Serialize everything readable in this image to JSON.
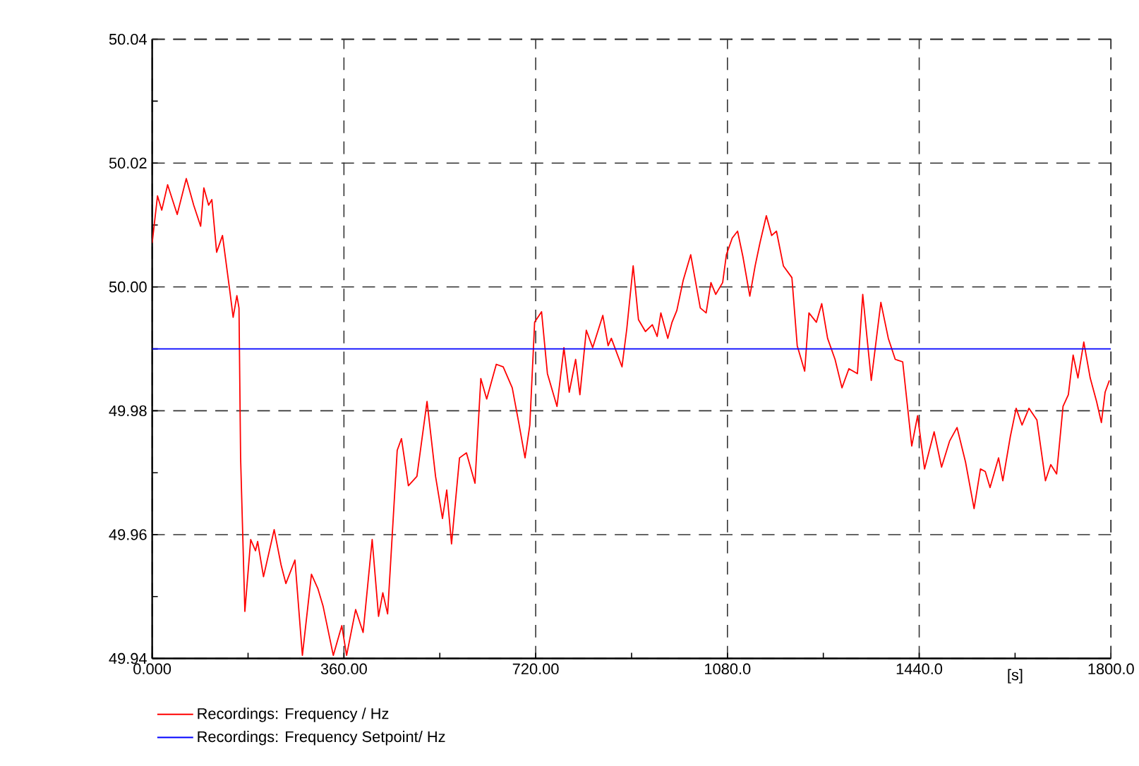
{
  "chart_data": {
    "type": "line",
    "xlabel": "[s]",
    "xlim": [
      0,
      1800
    ],
    "ylim": [
      49.94,
      50.04
    ],
    "xticks": [
      {
        "value": 0,
        "label": "0.000"
      },
      {
        "value": 360,
        "label": "360.00"
      },
      {
        "value": 720,
        "label": "720.00"
      },
      {
        "value": 1080,
        "label": "1080.0"
      },
      {
        "value": 1440,
        "label": "1440.0"
      },
      {
        "value": 1800,
        "label": "1800.0"
      }
    ],
    "yticks": [
      {
        "value": 49.94,
        "label": "49.94"
      },
      {
        "value": 49.96,
        "label": "49.96"
      },
      {
        "value": 49.98,
        "label": "49.98"
      },
      {
        "value": 50.0,
        "label": "50.00"
      },
      {
        "value": 50.02,
        "label": "50.02"
      },
      {
        "value": 50.04,
        "label": "50.04"
      }
    ],
    "grid": true,
    "legend": "bottom",
    "marker": "none",
    "line_style": "solid",
    "series": [
      {
        "name": "Recordings: Frequency / Hz",
        "color": "#ff0000",
        "x": [
          0,
          10,
          18,
          29,
          47,
          64,
          78,
          91,
          97,
          106,
          112,
          121,
          132,
          146,
          152,
          159,
          163,
          166,
          174,
          185,
          194,
          198,
          209,
          229,
          242,
          251,
          268,
          282,
          299,
          311,
          321,
          340,
          356,
          365,
          382,
          396,
          413,
          425,
          433,
          442,
          460,
          468,
          481,
          497,
          516,
          532,
          545,
          553,
          562,
          577,
          590,
          606,
          617,
          628,
          646,
          659,
          676,
          689,
          700,
          709,
          718,
          731,
          742,
          760,
          773,
          783,
          795,
          803,
          815,
          827,
          846,
          856,
          862,
          882,
          891,
          903,
          913,
          926,
          939,
          948,
          955,
          968,
          976,
          985,
          997,
          1011,
          1029,
          1040,
          1049,
          1058,
          1071,
          1078,
          1089,
          1099,
          1109,
          1122,
          1132,
          1141,
          1153,
          1163,
          1172,
          1185,
          1201,
          1211,
          1225,
          1233,
          1247,
          1257,
          1268,
          1282,
          1295,
          1308,
          1324,
          1334,
          1350,
          1368,
          1382,
          1395,
          1409,
          1426,
          1437,
          1450,
          1468,
          1482,
          1497,
          1511,
          1527,
          1543,
          1555,
          1564,
          1573,
          1589,
          1597,
          1611,
          1622,
          1633,
          1646,
          1661,
          1677,
          1687,
          1698,
          1710,
          1720,
          1729,
          1738,
          1749,
          1761,
          1773,
          1782,
          1789,
          1797
        ],
        "values": [
          50.0071,
          50.0147,
          50.0124,
          50.0165,
          50.0117,
          50.0175,
          50.0132,
          50.0098,
          50.016,
          50.0132,
          50.0141,
          50.0056,
          50.0083,
          49.9992,
          49.9951,
          49.9986,
          49.9966,
          49.9724,
          49.9476,
          49.9592,
          49.9574,
          49.9589,
          49.9532,
          49.9608,
          49.9551,
          49.9521,
          49.9559,
          49.9405,
          49.9536,
          49.9513,
          49.9484,
          49.9405,
          49.9453,
          49.9405,
          49.9479,
          49.9442,
          49.9592,
          49.9468,
          49.9506,
          49.9472,
          49.9736,
          49.9755,
          49.9679,
          49.9694,
          49.9815,
          49.9694,
          49.9626,
          49.9672,
          49.9585,
          49.9724,
          49.9732,
          49.9683,
          49.9852,
          49.9819,
          49.9875,
          49.9871,
          49.9837,
          49.9777,
          49.9724,
          49.9777,
          49.9943,
          49.996,
          49.986,
          49.9807,
          49.9902,
          49.983,
          49.9883,
          49.9826,
          49.993,
          49.9902,
          49.9954,
          49.9905,
          49.9917,
          49.9871,
          49.9932,
          50.0034,
          49.9947,
          49.9928,
          49.9939,
          49.992,
          49.9958,
          49.9917,
          49.9943,
          49.9962,
          50.0011,
          50.0052,
          49.9966,
          49.9958,
          50.0007,
          49.9988,
          50.0007,
          50.0052,
          50.0079,
          50.009,
          50.0049,
          49.9985,
          50.0034,
          50.0071,
          50.0115,
          50.0083,
          50.009,
          50.0034,
          50.0015,
          49.9905,
          49.9864,
          49.9958,
          49.9943,
          49.9973,
          49.9917,
          49.9883,
          49.9837,
          49.9868,
          49.986,
          49.9988,
          49.9849,
          49.9975,
          49.9917,
          49.9883,
          49.9879,
          49.9743,
          49.9792,
          49.9706,
          49.9766,
          49.9709,
          49.9751,
          49.9773,
          49.9717,
          49.9642,
          49.9706,
          49.9702,
          49.9676,
          49.9724,
          49.9687,
          49.9758,
          49.9804,
          49.9777,
          49.9804,
          49.9785,
          49.9687,
          49.9713,
          49.9698,
          49.9807,
          49.9826,
          49.989,
          49.9853,
          49.9911,
          49.9853,
          49.9815,
          49.9781,
          49.983,
          49.9849
        ]
      },
      {
        "name": "Recordings: Frequency Setpoint/ Hz",
        "color": "#0000ff",
        "x": [
          0,
          1800
        ],
        "values": [
          49.99,
          49.99
        ]
      }
    ]
  }
}
